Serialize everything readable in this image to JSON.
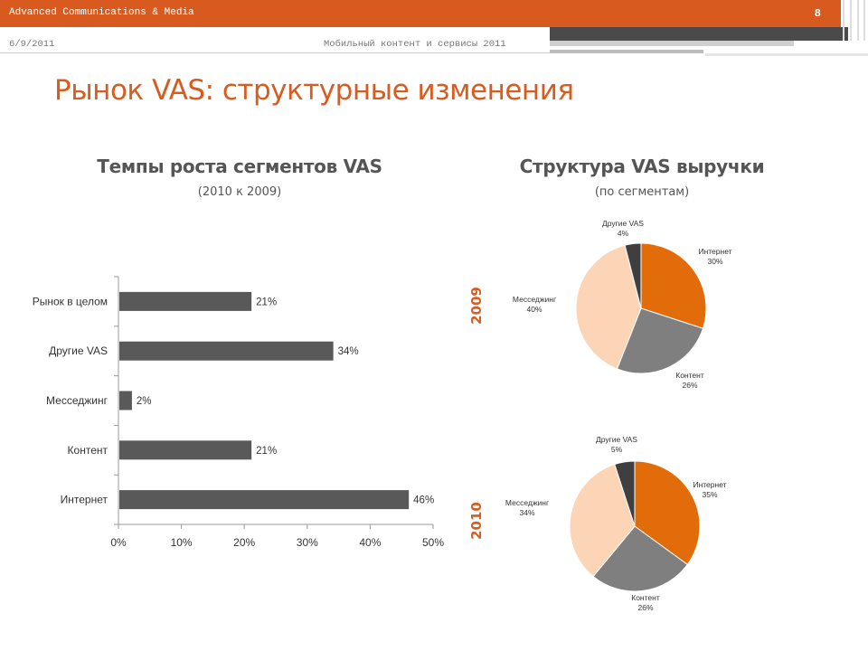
{
  "header": {
    "company": "Advanced Communications & Media",
    "page_number": "8",
    "date": "6/9/2011",
    "conference": "Мобильный контент и сервисы 2011"
  },
  "title": "Рынок VAS: структурные изменения",
  "left_section": {
    "title": "Темпы роста сегментов VAS",
    "subtitle": "(2010 к 2009)"
  },
  "right_section": {
    "title": "Структура VAS выручки",
    "subtitle": "(по сегментам)"
  },
  "colors": {
    "accent": "#d85c1f",
    "bar": "#595959",
    "internet": "#e36c0a",
    "content": "#7f7f7f",
    "messaging": "#fbd5b5",
    "other": "#3f3f3f"
  },
  "chart_data": [
    {
      "type": "bar",
      "orientation": "horizontal",
      "categories": [
        "Рынок в целом",
        "Другие VAS",
        "Месседжинг",
        "Контент",
        "Интернет"
      ],
      "values": [
        21,
        34,
        2,
        21,
        46
      ],
      "value_labels": [
        "21%",
        "34%",
        "2%",
        "21%",
        "46%"
      ],
      "x_ticks": [
        "0%",
        "10%",
        "20%",
        "30%",
        "40%",
        "50%"
      ],
      "xlim": [
        0,
        50
      ]
    },
    {
      "type": "pie",
      "year": "2009",
      "slices": [
        {
          "label": "Интернет",
          "value": 30,
          "pct": "30%",
          "color": "#e36c0a"
        },
        {
          "label": "Контент",
          "value": 26,
          "pct": "26%",
          "color": "#7f7f7f"
        },
        {
          "label": "Месседжинг",
          "value": 40,
          "pct": "40%",
          "color": "#fbd5b5"
        },
        {
          "label": "Другие VAS",
          "value": 4,
          "pct": "4%",
          "color": "#3f3f3f"
        }
      ]
    },
    {
      "type": "pie",
      "year": "2010",
      "slices": [
        {
          "label": "Интернет",
          "value": 35,
          "pct": "35%",
          "color": "#e36c0a"
        },
        {
          "label": "Контент",
          "value": 26,
          "pct": "26%",
          "color": "#7f7f7f"
        },
        {
          "label": "Месседжинг",
          "value": 34,
          "pct": "34%",
          "color": "#fbd5b5"
        },
        {
          "label": "Другие VAS",
          "value": 5,
          "pct": "5%",
          "color": "#3f3f3f"
        }
      ]
    }
  ]
}
